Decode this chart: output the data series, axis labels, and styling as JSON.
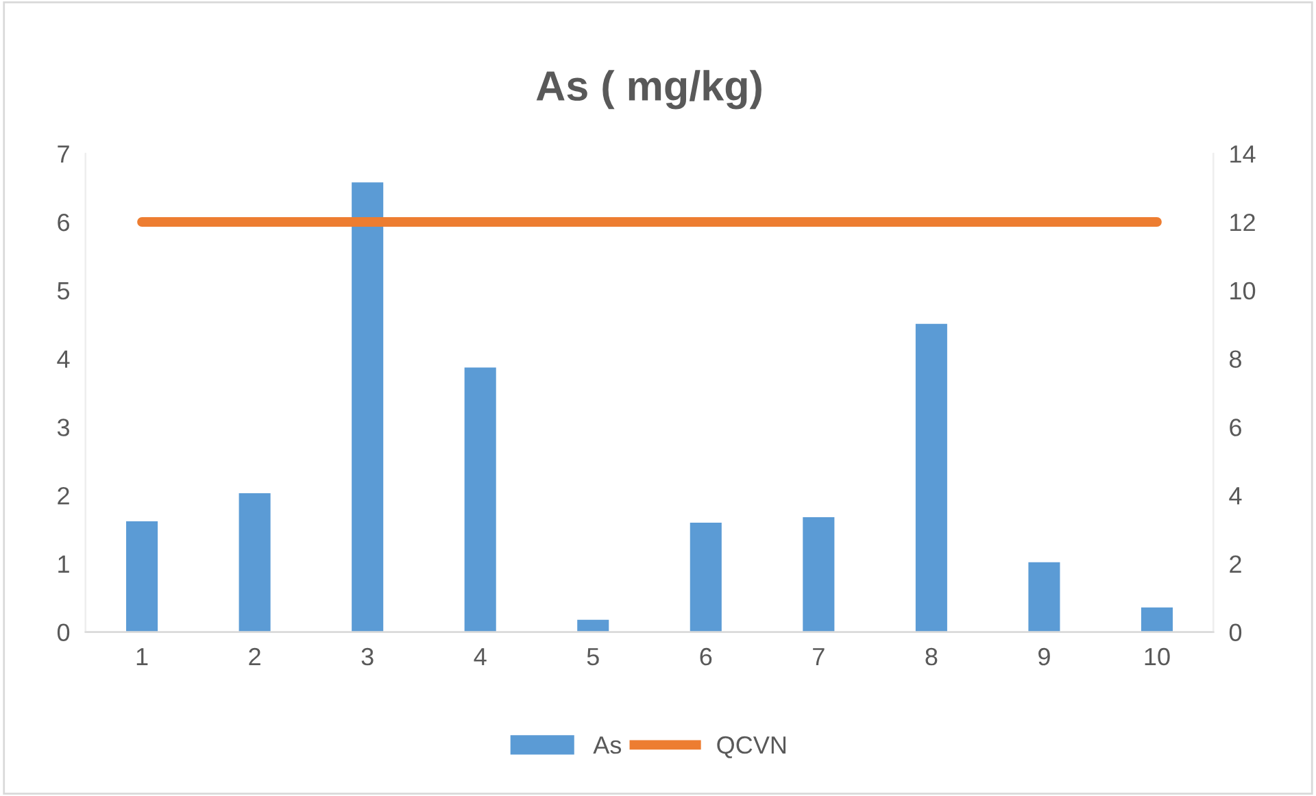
{
  "chart_data": {
    "type": "bar",
    "title": "As ( mg/kg)",
    "categories": [
      "1",
      "2",
      "3",
      "4",
      "5",
      "6",
      "7",
      "8",
      "9",
      "10"
    ],
    "series": [
      {
        "name": "As",
        "color": "#5b9bd5",
        "values": [
          1.62,
          2.03,
          6.58,
          3.87,
          0.18,
          1.6,
          1.68,
          4.51,
          1.02,
          0.36
        ]
      },
      {
        "name": "QCVN",
        "type": "line",
        "axis": "y2",
        "color": "#ed7d31",
        "values": [
          12,
          12,
          12,
          12,
          12,
          12,
          12,
          12,
          12,
          12
        ]
      }
    ],
    "ylim": [
      0,
      7
    ],
    "yticks": [
      0,
      1,
      2,
      3,
      4,
      5,
      6,
      7
    ],
    "y2lim": [
      0,
      14
    ],
    "y2ticks": [
      0,
      2,
      4,
      6,
      8,
      10,
      12,
      14
    ],
    "grid": false,
    "legend": "bottom",
    "marker": "none",
    "line_style": "solid"
  }
}
